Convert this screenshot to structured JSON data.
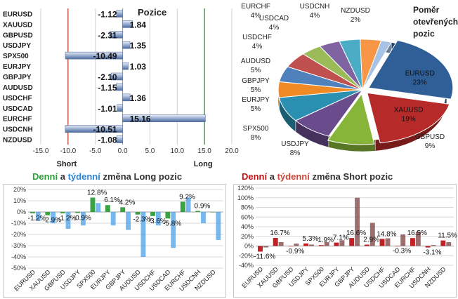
{
  "chart_data": [
    {
      "type": "bar",
      "orientation": "horizontal",
      "title": "Pozice",
      "categories": [
        "EURUSD",
        "XAUUSD",
        "GBPUSD",
        "USDJPY",
        "SPX500",
        "EURJPY",
        "GBPJPY",
        "AUDUSD",
        "USDCHF",
        "USDCAD",
        "EURCHF",
        "USDCNH",
        "NZDUSD"
      ],
      "values": [
        -1.12,
        1.84,
        -2.31,
        1.35,
        -10.49,
        1.03,
        -2.1,
        -1.15,
        1.36,
        -1.01,
        15.16,
        -10.51,
        -1.08
      ],
      "value_labels": [
        "-1.12",
        "1.84",
        "-2.31",
        "1.35",
        "-10.49",
        "1.03",
        "-2.10",
        "-1.15",
        "1.36",
        "-1.01",
        "15.16",
        "-10.51",
        "-1.08"
      ],
      "xlim": [
        -15,
        20
      ],
      "xticks": [
        "-15.0",
        "-10.0",
        "-5.0",
        "0.0",
        "5.0",
        "10.0",
        "15.0",
        "20.0"
      ],
      "xtick_values": [
        -15,
        -10,
        -5,
        0,
        5,
        10,
        15,
        20
      ],
      "ref_lines": [
        {
          "label": "Short",
          "x": -10,
          "color": "#c0392b"
        },
        {
          "label": "Long",
          "x": 15,
          "color": "#2e8b2e"
        }
      ],
      "grid": true
    },
    {
      "type": "pie",
      "title": "Poměr otevřených pozic",
      "labels": [
        "EURUSD",
        "XAUUSD",
        "GBPUSD",
        "USDJPY",
        "SPX500",
        "EURJPY",
        "GBPJPY",
        "AUDUSD",
        "USDCHF",
        "USDCAD",
        "EURCHF",
        "USDCNH",
        "NZDUSD"
      ],
      "values": [
        23,
        19,
        9,
        8,
        8,
        5,
        5,
        5,
        4,
        4,
        4,
        4,
        2
      ],
      "value_labels": [
        "23%",
        "19%",
        "9%",
        "8%",
        "8%",
        "5%",
        "5%",
        "5%",
        "4%",
        "4%",
        "4%",
        "4%",
        "2%"
      ],
      "colors": [
        "#2f5f96",
        "#b72a2a",
        "#86b53a",
        "#6a4b8c",
        "#2a8fb0",
        "#f08a24",
        "#4f81bd",
        "#c0504d",
        "#9bbb59",
        "#8064a2",
        "#4bacc6",
        "#f79646",
        "#a6c3e6"
      ]
    },
    {
      "type": "bar",
      "title": "Denní a týdenní změna Long pozic",
      "title_parts": [
        "Denní",
        " a ",
        "týdenní",
        " změna Long pozic"
      ],
      "series": [
        {
          "name": "Denní",
          "color": "#2e9e3a",
          "values": [
            -1.2,
            -2.9,
            -1.2,
            -0.9,
            12.8,
            6.1,
            4.2,
            -2.3,
            -3.6,
            -5.8,
            9.2,
            0.9,
            0.0
          ]
        },
        {
          "name": "týdenní",
          "color": "#4aa0e8",
          "values": [
            -8.0,
            -10.0,
            -15.0,
            -12.0,
            8.0,
            -12.0,
            -16.0,
            -40.0,
            -12.0,
            -32.0,
            13.0,
            -10.0,
            -25.0
          ]
        }
      ],
      "categories": [
        "EURUSD",
        "XAUUSD",
        "GBPUSD",
        "USDJPY",
        "SPX500",
        "EURJPY",
        "GBPJPY",
        "AUDUSD",
        "USDCHF",
        "USDCAD",
        "EURCHF",
        "USDCNH",
        "NZDUSD"
      ],
      "data_labels": [
        "-1.2%",
        "-2.9%",
        "-1.2%",
        "-0.9%",
        "12.8%",
        "6.1%",
        "4.2%",
        "-2.3%",
        "-3.6%",
        "-5.8%",
        "9.2%",
        "0.9%",
        ""
      ],
      "ylim": [
        -50,
        20
      ],
      "yticks": [
        "20%",
        "10%",
        "0%",
        "-10%",
        "-20%",
        "-30%",
        "-40%",
        "-50%"
      ],
      "ytick_values": [
        20,
        10,
        0,
        -10,
        -20,
        -30,
        -40,
        -50
      ],
      "grid": true
    },
    {
      "type": "bar",
      "title": "Denní a týdenní změna Short pozic",
      "title_parts": [
        "Denní",
        " a ",
        "týdenní",
        " změna Short pozic"
      ],
      "series": [
        {
          "name": "Denní",
          "color": "#c0141a",
          "values": [
            -11.6,
            16.7,
            -0.9,
            5.3,
            1.9,
            7.1,
            16.6,
            2.9,
            14.8,
            -0.3,
            16.5,
            -3.1,
            11.5
          ]
        },
        {
          "name": "týdenní",
          "color": "#7a3f3f",
          "values": [
            -3.0,
            8.0,
            5.0,
            3.0,
            8.0,
            12.0,
            100.0,
            48.0,
            16.0,
            24.0,
            30.0,
            2.0,
            8.0
          ]
        }
      ],
      "categories": [
        "EURUSD",
        "XAUUSD",
        "GBPUSD",
        "USDJPY",
        "SPX500",
        "EURJPY",
        "GBPJPY",
        "AUDUSD",
        "USDCHF",
        "USDCAD",
        "EURCHF",
        "USDCNH",
        "NZDUSD"
      ],
      "data_labels": [
        "-11.6%",
        "16.7%",
        "-0.9%",
        "5.3%",
        "1.9%",
        "7.1%",
        "16.6%",
        "2.9%",
        "14.8%",
        "-0.3%",
        "16.5%",
        "-3.1%",
        "11.5%"
      ],
      "ylim": [
        -40,
        120
      ],
      "yticks": [
        "120%",
        "100%",
        "80%",
        "60%",
        "40%",
        "20%",
        "0%",
        "-20%",
        "-40%"
      ],
      "ytick_values": [
        120,
        100,
        80,
        60,
        40,
        20,
        0,
        -20,
        -40
      ],
      "grid": true
    }
  ]
}
